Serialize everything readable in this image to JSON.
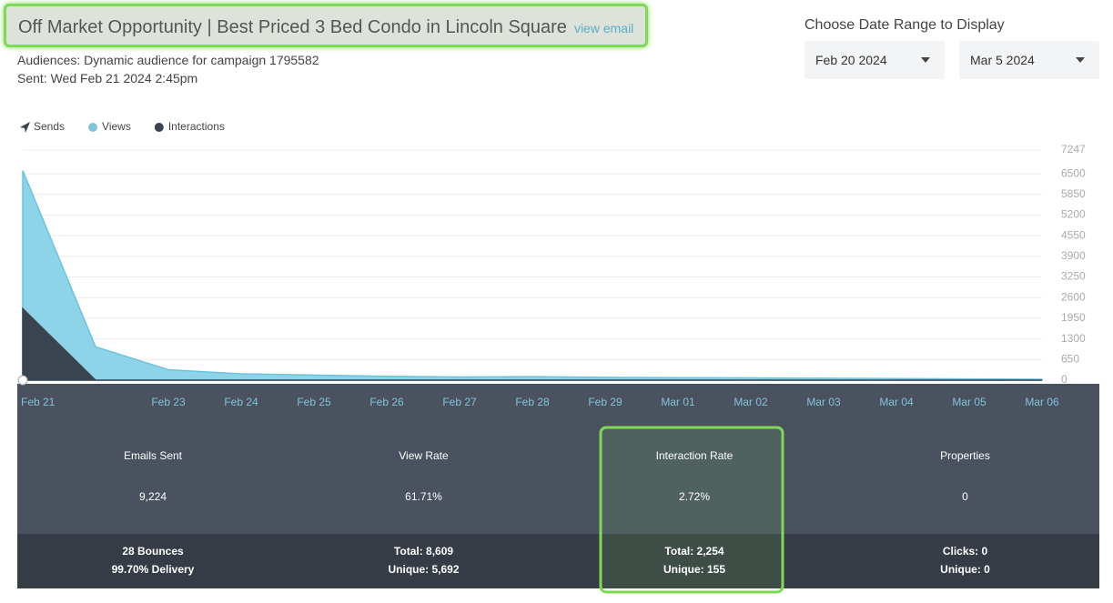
{
  "header": {
    "title": "Off Market Opportunity | Best Priced 3 Bed Condo in Lincoln Square",
    "link": "view email",
    "audiences": "Audiences: Dynamic audience for campaign 1795582",
    "sent": "Sent: Wed Feb 21 2024 2:45pm"
  },
  "date_range": {
    "label": "Choose Date Range to Display",
    "start": "Feb 20 2024",
    "end": "Mar 5 2024"
  },
  "chart_data": {
    "type": "area",
    "categories": [
      "Feb 21",
      null,
      "Feb 23",
      "Feb 24",
      "Feb 25",
      "Feb 26",
      "Feb 27",
      "Feb 28",
      "Feb 29",
      "Mar 01",
      "Mar 02",
      "Mar 03",
      "Mar 04",
      "Mar 05",
      "Mar 06"
    ],
    "series": [
      {
        "name": "Sends",
        "color": "#3a4350",
        "values": [
          0,
          0,
          0,
          0,
          0,
          0,
          0,
          0,
          0,
          0,
          0,
          0,
          0,
          0,
          0
        ]
      },
      {
        "name": "Views",
        "color": "#8ed4e9",
        "values": [
          6600,
          1050,
          330,
          200,
          160,
          120,
          100,
          110,
          90,
          80,
          70,
          60,
          50,
          40,
          30
        ]
      },
      {
        "name": "Interactions",
        "color": "#3a4350",
        "values": [
          2250,
          0,
          0,
          0,
          0,
          0,
          0,
          0,
          0,
          0,
          0,
          0,
          0,
          0,
          0
        ]
      }
    ],
    "ylim": [
      0,
      7247
    ],
    "yticks": [
      0,
      650,
      1300,
      1950,
      2600,
      3250,
      3900,
      4550,
      5200,
      5850,
      6500,
      7247
    ],
    "grid": true
  },
  "stats": [
    {
      "label": "Emails Sent",
      "value": "9,224",
      "lines": [
        "28 Bounces",
        "99.70% Delivery"
      ]
    },
    {
      "label": "View Rate",
      "value": "61.71%",
      "lines": [
        "Total: 8,609",
        "Unique: 5,692"
      ]
    },
    {
      "label": "Interaction Rate",
      "value": "2.72%",
      "lines": [
        "Total: 2,254",
        "Unique: 155"
      ]
    },
    {
      "label": "Properties",
      "value": "0",
      "lines": [
        "Clicks: 0",
        "Unique: 0"
      ]
    }
  ]
}
